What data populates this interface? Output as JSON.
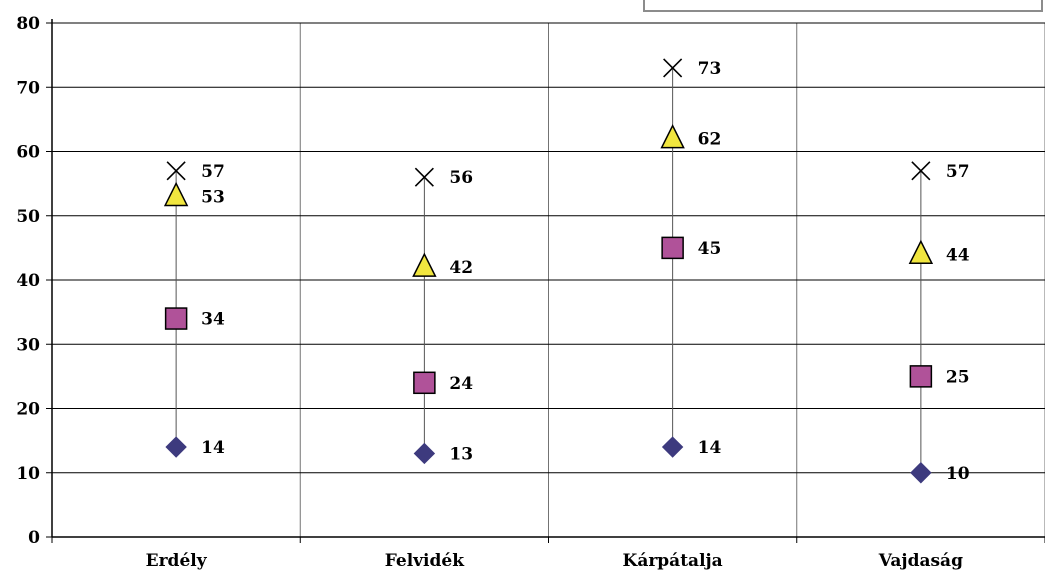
{
  "chart_data": {
    "type": "scatter",
    "categories": [
      "Erdély",
      "Felvidék",
      "Kárpátalja",
      "Vajdaság"
    ],
    "ylim": [
      0,
      80
    ],
    "yticks": [
      0,
      10,
      20,
      30,
      40,
      50,
      60,
      70,
      80
    ],
    "grid": true,
    "legend": "top-right (cropped)",
    "series": [
      {
        "marker": "diamond",
        "color": "#3d3a7e",
        "values": [
          14,
          13,
          14,
          10
        ]
      },
      {
        "marker": "square",
        "color": "#b05299",
        "values": [
          34,
          24,
          45,
          25
        ]
      },
      {
        "marker": "triangle",
        "color": "#f1e63f",
        "values": [
          53,
          42,
          62,
          44
        ]
      },
      {
        "marker": "x",
        "color": "#000000",
        "values": [
          57,
          56,
          73,
          57
        ]
      }
    ]
  }
}
